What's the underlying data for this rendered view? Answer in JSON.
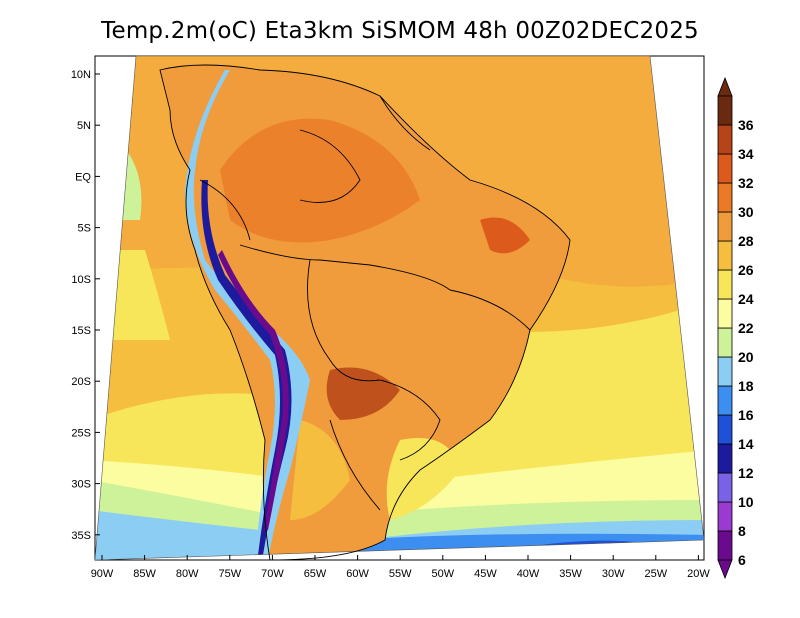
{
  "title": "Temp.2m(oC) Eta3km SiSMOM 48h 00Z02DEC2025",
  "lat_labels": [
    "10N",
    "5N",
    "EQ",
    "5S",
    "10S",
    "15S",
    "20S",
    "25S",
    "30S",
    "35S"
  ],
  "lon_labels": [
    "90W",
    "85W",
    "80W",
    "75W",
    "70W",
    "65W",
    "60W",
    "55W",
    "50W",
    "45W",
    "40W",
    "35W",
    "30W",
    "25W",
    "20W"
  ],
  "colorbar": {
    "ticks": [
      "6",
      "8",
      "10",
      "12",
      "14",
      "16",
      "18",
      "20",
      "22",
      "24",
      "26",
      "28",
      "30",
      "32",
      "34",
      "36"
    ],
    "colors": [
      "#6a0a8c",
      "#9a3ad0",
      "#7a62e6",
      "#1e1a9e",
      "#1f50d8",
      "#3c8ef0",
      "#8ccdf4",
      "#cdf29a",
      "#fcfca0",
      "#f8e65a",
      "#f6be3e",
      "#f09c3c",
      "#ea7a26",
      "#dc5a1c",
      "#b64418",
      "#6a2a10"
    ],
    "units": "oC"
  }
}
